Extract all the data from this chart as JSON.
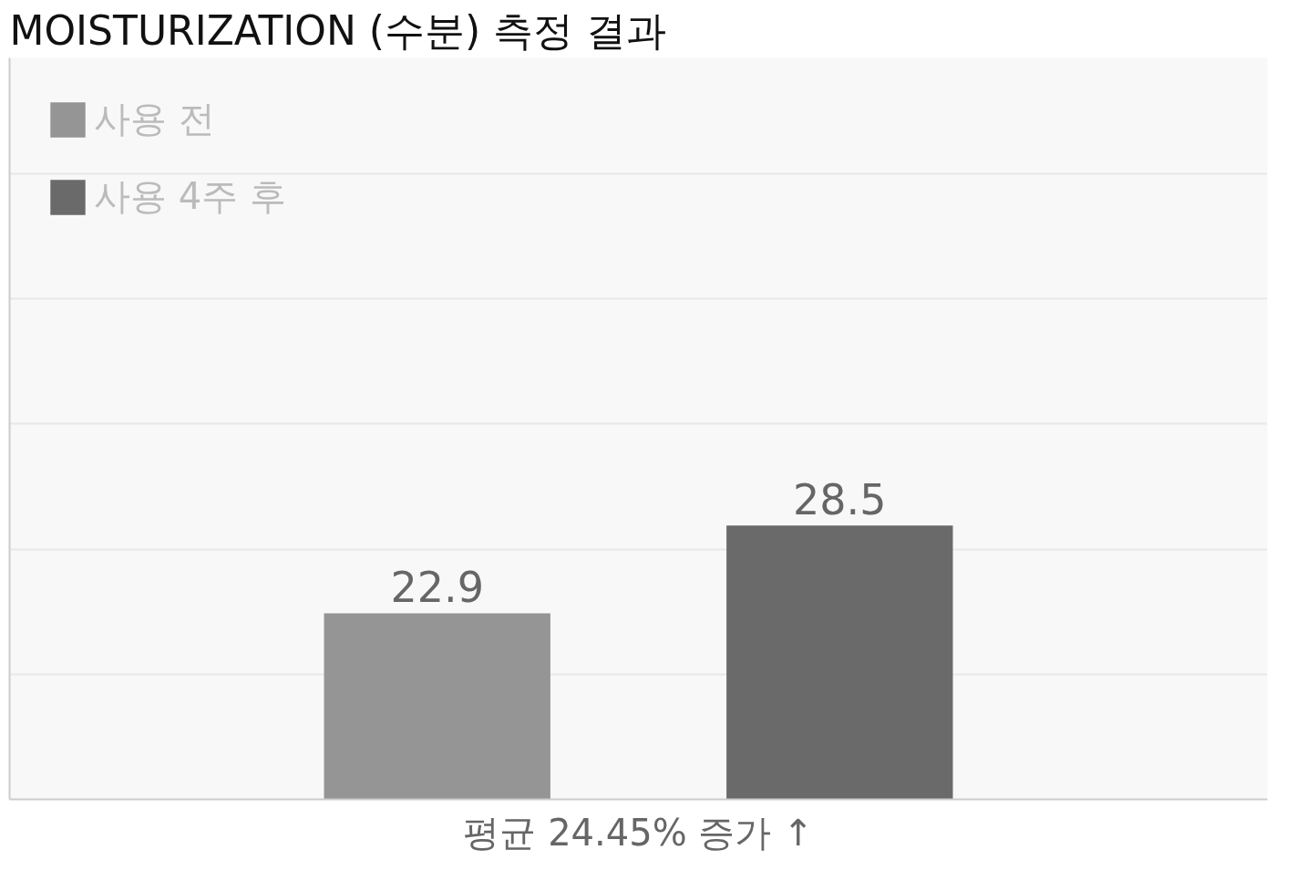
{
  "chart_data": {
    "type": "bar",
    "title": "MOISTURIZATION (수분) 측정 결과",
    "categories": [
      null
    ],
    "series": [
      {
        "name": "사용 전",
        "color": "#959595",
        "values": [
          22.9
        ]
      },
      {
        "name": "사용 4주 후",
        "color": "#6a6a6a",
        "values": [
          28.5
        ]
      }
    ],
    "ylim": [
      11,
      58.4
    ],
    "yticks": [
      {
        "value": 19,
        "label": null
      },
      {
        "value": 27,
        "label": null
      },
      {
        "value": 35,
        "label": null
      },
      {
        "value": 43,
        "label": null
      },
      {
        "value": 51,
        "label": null
      }
    ],
    "grid": "y",
    "legend": "top left",
    "data_labels": true,
    "annotations": [
      "평균 24.45% 증가 ↑"
    ]
  }
}
